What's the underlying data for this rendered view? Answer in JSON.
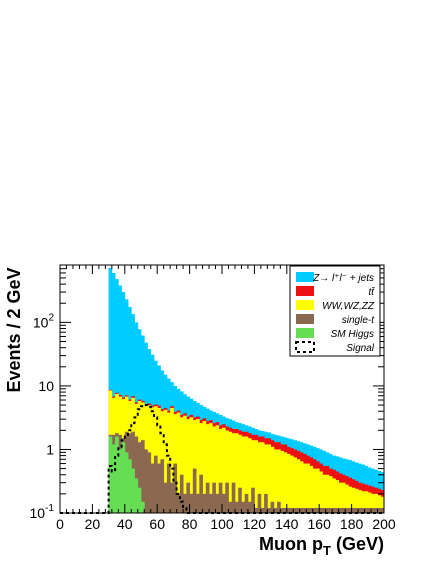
{
  "chart_data": {
    "type": "area",
    "xlabel": "Muon p",
    "xlabel_sub": "T",
    "xlabel_unit": "(GeV)",
    "ylabel": "Events / 2 GeV",
    "xlim": [
      0,
      200
    ],
    "ylim": [
      0.1,
      800
    ],
    "yscale": "log",
    "grid": false,
    "legend_position": "top-right",
    "bin_width": 2,
    "x_ticks": [
      0,
      20,
      40,
      60,
      80,
      100,
      120,
      140,
      160,
      180,
      200
    ],
    "y_ticks": [
      {
        "value": 0.1,
        "base": "10",
        "exp": "-1"
      },
      {
        "value": 1,
        "text": "1"
      },
      {
        "value": 10,
        "text": "10"
      },
      {
        "value": 100,
        "base": "10",
        "exp": "2"
      }
    ],
    "bin_starts": [
      30,
      32,
      34,
      36,
      38,
      40,
      42,
      44,
      46,
      48,
      50,
      52,
      54,
      56,
      58,
      60,
      62,
      64,
      66,
      68,
      70,
      72,
      74,
      76,
      78,
      80,
      82,
      84,
      86,
      88,
      90,
      92,
      94,
      96,
      98,
      100,
      102,
      104,
      106,
      108,
      110,
      112,
      114,
      116,
      118,
      120,
      122,
      124,
      126,
      128,
      130,
      132,
      134,
      136,
      138,
      140,
      142,
      144,
      146,
      148,
      150,
      152,
      154,
      156,
      158,
      160,
      162,
      164,
      166,
      168,
      170,
      172,
      174,
      176,
      178,
      180,
      182,
      184,
      186,
      188,
      190,
      192,
      194,
      196,
      198
    ],
    "series": [
      {
        "name": "SM Higgs",
        "color": "#66dd55",
        "values": [
          1.6,
          1.2,
          1.6,
          1.0,
          1.3,
          0.9,
          0.7,
          0.5,
          0.35,
          0.25,
          0.15,
          0.1,
          0.1,
          0.1,
          0.1,
          0.1,
          0.1,
          0.1,
          0.1,
          0.1,
          0.1,
          0.1,
          0.1,
          0.1,
          0.1,
          0.1,
          0.1,
          0.1,
          0.1,
          0.1,
          0.1,
          0.1,
          0.1,
          0.1,
          0.1,
          0.1,
          0.1,
          0.1,
          0.1,
          0.1,
          0.1,
          0.1,
          0.1,
          0.1,
          0.1,
          0.1,
          0.1,
          0.1,
          0.1,
          0.1,
          0.1,
          0.1,
          0.1,
          0.1,
          0.1,
          0.1,
          0.1,
          0.1,
          0.1,
          0.1,
          0.1,
          0.1,
          0.1,
          0.1,
          0.1,
          0.1,
          0.1,
          0.1,
          0.1,
          0.1,
          0.1,
          0.1,
          0.1,
          0.1,
          0.1,
          0.1,
          0.1,
          0.1,
          0.1,
          0.1,
          0.1,
          0.1,
          0.1,
          0.1,
          0.1
        ]
      },
      {
        "name": "single-t",
        "color": "#8b6950",
        "values": [
          1.7,
          1.7,
          1.8,
          1.7,
          1.5,
          1.9,
          1.8,
          1.9,
          1.6,
          1.3,
          1.4,
          1.0,
          0.9,
          0.6,
          0.8,
          0.6,
          0.7,
          0.3,
          0.6,
          0.3,
          0.6,
          0.2,
          0.4,
          0.2,
          0.3,
          0.2,
          0.5,
          0.2,
          0.4,
          0.2,
          0.3,
          0.2,
          0.3,
          0.2,
          0.3,
          0.2,
          0.3,
          0.15,
          0.3,
          0.15,
          0.25,
          0.15,
          0.2,
          0.15,
          0.25,
          0.12,
          0.2,
          0.12,
          0.2,
          0.12,
          0.15,
          0.12,
          0.15,
          0.12,
          0.12,
          0.12,
          0.12,
          0.12,
          0.12,
          0.12,
          0.12,
          0.12,
          0.12,
          0.12,
          0.12,
          0.12,
          0.12,
          0.12,
          0.12,
          0.12,
          0.12,
          0.12,
          0.12,
          0.12,
          0.12,
          0.12,
          0.12,
          0.12,
          0.12,
          0.12,
          0.12,
          0.12,
          0.12,
          0.12,
          0.12
        ]
      },
      {
        "name": "WW,WZ,ZZ",
        "color": "#ffff00",
        "values": [
          8.5,
          6.5,
          7.5,
          6.8,
          6.2,
          6.8,
          5.8,
          6.5,
          5.2,
          5.8,
          5.5,
          4.8,
          5.0,
          4.6,
          4.8,
          4.5,
          4.0,
          4.2,
          3.8,
          4.5,
          3.6,
          3.8,
          3.2,
          3.4,
          3.0,
          3.2,
          2.9,
          3.0,
          2.6,
          2.8,
          2.5,
          2.6,
          2.3,
          2.4,
          2.1,
          2.2,
          2.0,
          1.9,
          1.8,
          1.8,
          1.7,
          1.6,
          1.6,
          1.5,
          1.4,
          1.4,
          1.3,
          1.3,
          1.2,
          1.2,
          1.1,
          1.0,
          1.0,
          0.95,
          0.9,
          0.85,
          0.8,
          0.75,
          0.7,
          0.65,
          0.6,
          0.6,
          0.55,
          0.5,
          0.5,
          0.45,
          0.4,
          0.4,
          0.38,
          0.35,
          0.33,
          0.3,
          0.3,
          0.28,
          0.26,
          0.25,
          0.24,
          0.23,
          0.22,
          0.22,
          0.21,
          0.2,
          0.2,
          0.19,
          0.18
        ]
      },
      {
        "name": "tt",
        "color": "#ee1111",
        "values": [
          8.7,
          6.8,
          7.8,
          7.2,
          6.6,
          7.1,
          6.1,
          6.9,
          5.5,
          6.1,
          5.8,
          5.1,
          5.3,
          4.9,
          5.1,
          4.9,
          4.3,
          4.5,
          4.1,
          4.8,
          3.9,
          4.1,
          3.5,
          3.7,
          3.3,
          3.5,
          3.2,
          3.3,
          2.9,
          3.1,
          2.8,
          2.9,
          2.6,
          2.7,
          2.4,
          2.5,
          2.3,
          2.2,
          2.1,
          2.1,
          2.0,
          1.9,
          1.9,
          1.8,
          1.7,
          1.7,
          1.6,
          1.6,
          1.5,
          1.5,
          1.4,
          1.3,
          1.3,
          1.2,
          1.2,
          1.1,
          1.05,
          1.0,
          0.95,
          0.9,
          0.85,
          0.8,
          0.75,
          0.7,
          0.65,
          0.6,
          0.55,
          0.55,
          0.5,
          0.48,
          0.45,
          0.42,
          0.4,
          0.38,
          0.36,
          0.34,
          0.32,
          0.3,
          0.29,
          0.28,
          0.27,
          0.26,
          0.25,
          0.24,
          0.23
        ]
      },
      {
        "name": "Z→ l+l- + jets",
        "color": "#00ccff",
        "values": [
          720,
          600,
          480,
          380,
          300,
          230,
          175,
          135,
          100,
          78,
          62,
          48,
          38,
          31,
          25,
          21,
          17.5,
          15,
          13,
          11.5,
          10,
          9,
          8.2,
          7.4,
          6.8,
          6.3,
          5.8,
          5.4,
          5.0,
          4.7,
          4.4,
          4.1,
          3.9,
          3.7,
          3.5,
          3.3,
          3.1,
          3.0,
          2.85,
          2.7,
          2.6,
          2.5,
          2.4,
          2.3,
          2.2,
          2.1,
          2.0,
          1.95,
          1.9,
          1.85,
          1.75,
          1.7,
          1.65,
          1.6,
          1.55,
          1.5,
          1.45,
          1.4,
          1.35,
          1.3,
          1.25,
          1.2,
          1.15,
          1.1,
          1.05,
          1.0,
          0.95,
          0.9,
          0.85,
          0.8,
          0.78,
          0.75,
          0.72,
          0.7,
          0.68,
          0.65,
          0.62,
          0.6,
          0.58,
          0.55,
          0.52,
          0.5,
          0.48,
          0.46,
          0.44
        ]
      }
    ],
    "signal": {
      "name": "Signal",
      "x": [
        0,
        30,
        30,
        32,
        34,
        36,
        38,
        40,
        42,
        44,
        46,
        48,
        50,
        52,
        54,
        56,
        58,
        60,
        62,
        64,
        66,
        68,
        70,
        72,
        74,
        76,
        78,
        80,
        82,
        84,
        86,
        200
      ],
      "y": [
        0.1,
        0.1,
        0.55,
        0.45,
        0.8,
        1.1,
        1.4,
        1.6,
        2.0,
        2.6,
        3.2,
        4.3,
        4.8,
        5.0,
        4.7,
        4.0,
        3.2,
        2.4,
        1.8,
        1.2,
        0.8,
        0.5,
        0.3,
        0.2,
        0.15,
        0.12,
        0.1,
        0.1,
        0.1,
        0.1,
        0.1,
        0.1
      ]
    },
    "legend": [
      {
        "label": "Z→ l⁺l⁻ + jets",
        "color": "#00ccff",
        "style": "fill"
      },
      {
        "label": "tt̄",
        "color": "#ee1111",
        "style": "fill"
      },
      {
        "label": "WW,WZ,ZZ",
        "color": "#ffff00",
        "style": "fill"
      },
      {
        "label": "single-t",
        "color": "#8b6950",
        "style": "fill"
      },
      {
        "label": "SM Higgs",
        "color": "#66dd55",
        "style": "fill"
      },
      {
        "label": "Signal",
        "color": "#000000",
        "style": "dashed"
      }
    ]
  }
}
